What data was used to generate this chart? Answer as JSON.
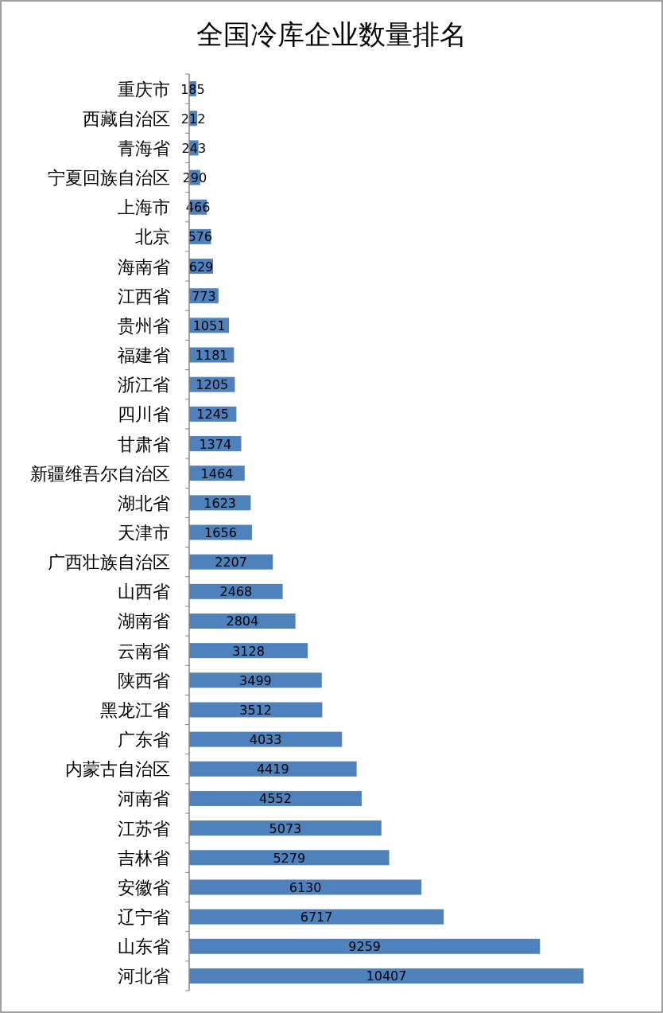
{
  "chart_data": {
    "type": "bar",
    "orientation": "horizontal",
    "title": "全国冷库企业数量排名",
    "categories": [
      "重庆市",
      "西藏自治区",
      "青海省",
      "宁夏回族自治区",
      "上海市",
      "北京",
      "海南省",
      "江西省",
      "贵州省",
      "福建省",
      "浙江省",
      "四川省",
      "甘肃省",
      "新疆维吾尔自治区",
      "湖北省",
      "天津市",
      "广西壮族自治区",
      "山西省",
      "湖南省",
      "云南省",
      "陕西省",
      "黑龙江省",
      "广东省",
      "内蒙古自治区",
      "河南省",
      "江苏省",
      "吉林省",
      "安徽省",
      "辽宁省",
      "山东省",
      "河北省"
    ],
    "values": [
      185,
      212,
      243,
      290,
      466,
      576,
      629,
      773,
      1051,
      1181,
      1205,
      1245,
      1374,
      1464,
      1623,
      1656,
      2207,
      2468,
      2804,
      3128,
      3499,
      3512,
      4033,
      4419,
      4552,
      5073,
      5279,
      6130,
      6717,
      9259,
      10407
    ],
    "color": "#4f81bd",
    "data_labels": true
  }
}
